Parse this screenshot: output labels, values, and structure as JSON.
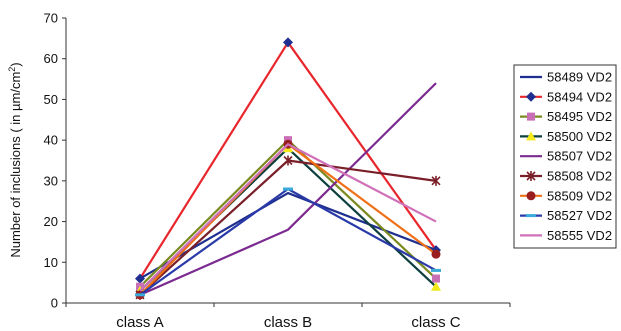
{
  "chart_data": {
    "type": "line",
    "categories": [
      "class A",
      "class B",
      "class C"
    ],
    "ylabel_main": "Number of inclusions ( in µm/cm",
    "ylabel_sup": "2",
    "ylabel_end": ")",
    "ylim": [
      0,
      70
    ],
    "yticks": [
      0,
      10,
      20,
      30,
      40,
      50,
      60,
      70
    ],
    "legend_position": "right",
    "series": [
      {
        "name": "58489 VD2",
        "values": [
          6,
          27,
          13
        ],
        "color": "#1f2f8f",
        "marker": "none"
      },
      {
        "name": "58494 VD2",
        "values": [
          6,
          64,
          13
        ],
        "color": "#e8262c",
        "marker": "diamond",
        "marker_color": "#1f2f8f"
      },
      {
        "name": "58495 VD2",
        "values": [
          4,
          40,
          6
        ],
        "color": "#7a8a1e",
        "marker": "square",
        "marker_color": "#c86fb6"
      },
      {
        "name": "58500 VD2",
        "values": [
          3,
          38,
          4
        ],
        "color": "#0e3f3f",
        "marker": "triangle",
        "marker_color": "#f2ea1a"
      },
      {
        "name": "58507 VD2",
        "values": [
          2,
          18,
          54
        ],
        "color": "#7b2a8f",
        "marker": "none"
      },
      {
        "name": "58508 VD2",
        "values": [
          2,
          35,
          30
        ],
        "color": "#7a1f2a",
        "marker": "star",
        "marker_color": "#7a1f2a"
      },
      {
        "name": "58509 VD2",
        "values": [
          2,
          39,
          12
        ],
        "color": "#f07018",
        "marker": "circle",
        "marker_color": "#9a1e1e"
      },
      {
        "name": "58527 VD2",
        "values": [
          2,
          28,
          8
        ],
        "color": "#2a3aa8",
        "marker": "bar",
        "marker_color": "#3aaad8"
      },
      {
        "name": "58555 VD2",
        "values": [
          3,
          39,
          20
        ],
        "color": "#d070b8",
        "marker": "none"
      }
    ]
  }
}
